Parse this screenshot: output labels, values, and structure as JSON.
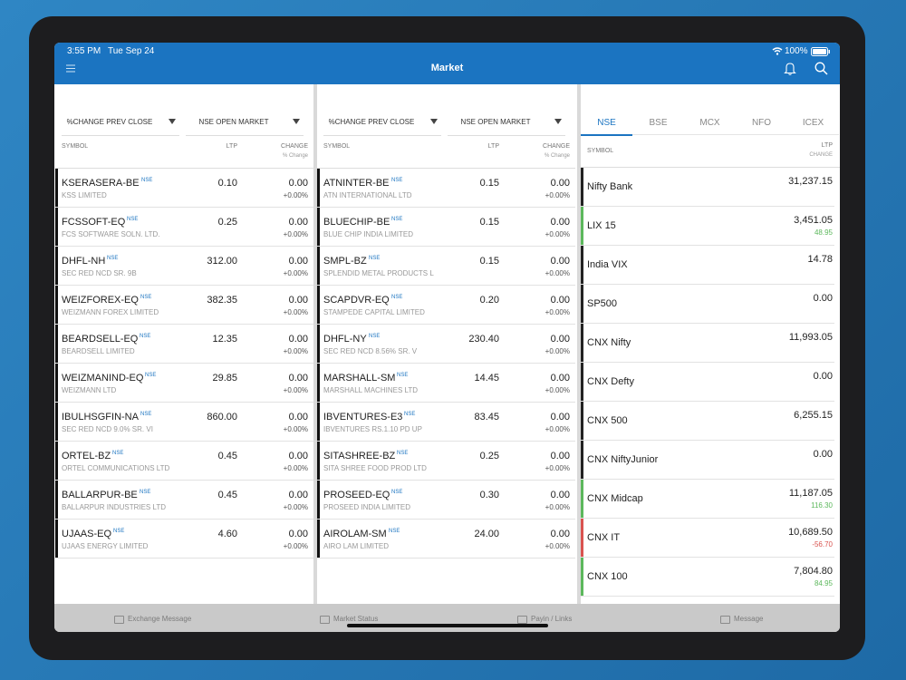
{
  "status_bar": {
    "time": "3:55 PM",
    "date": "Tue Sep 24",
    "battery": "100%"
  },
  "header": {
    "title": "Market"
  },
  "watchlists": [
    {
      "filters": [
        "%CHANGE PREV CLOSE",
        "NSE OPEN MARKET"
      ],
      "columns": {
        "symbol": "SYMBOL",
        "ltp": "LTP",
        "change": "CHANGE",
        "percent": "% Change"
      },
      "rows": [
        {
          "symbol": "KSERASERA-BE",
          "exchange": "NSE",
          "name": "KSS LIMITED",
          "ltp": "0.10",
          "change": "0.00",
          "percent": "+0.00%"
        },
        {
          "symbol": "FCSSOFT-EQ",
          "exchange": "NSE",
          "name": "FCS SOFTWARE SOLN. LTD.",
          "ltp": "0.25",
          "change": "0.00",
          "percent": "+0.00%"
        },
        {
          "symbol": "DHFL-NH",
          "exchange": "NSE",
          "name": "SEC RED NCD SR. 9B",
          "ltp": "312.00",
          "change": "0.00",
          "percent": "+0.00%"
        },
        {
          "symbol": "WEIZFOREX-EQ",
          "exchange": "NSE",
          "name": "WEIZMANN FOREX LIMITED",
          "ltp": "382.35",
          "change": "0.00",
          "percent": "+0.00%"
        },
        {
          "symbol": "BEARDSELL-EQ",
          "exchange": "NSE",
          "name": "BEARDSELL LIMITED",
          "ltp": "12.35",
          "change": "0.00",
          "percent": "+0.00%"
        },
        {
          "symbol": "WEIZMANIND-EQ",
          "exchange": "NSE",
          "name": "WEIZMANN LTD",
          "ltp": "29.85",
          "change": "0.00",
          "percent": "+0.00%"
        },
        {
          "symbol": "IBULHSGFIN-NA",
          "exchange": "NSE",
          "name": "SEC RED NCD 9.0% SR. VI",
          "ltp": "860.00",
          "change": "0.00",
          "percent": "+0.00%"
        },
        {
          "symbol": "ORTEL-BZ",
          "exchange": "NSE",
          "name": "ORTEL COMMUNICATIONS LTD",
          "ltp": "0.45",
          "change": "0.00",
          "percent": "+0.00%"
        },
        {
          "symbol": "BALLARPUR-BE",
          "exchange": "NSE",
          "name": "BALLARPUR INDUSTRIES LTD",
          "ltp": "0.45",
          "change": "0.00",
          "percent": "+0.00%"
        },
        {
          "symbol": "UJAAS-EQ",
          "exchange": "NSE",
          "name": "UJAAS ENERGY LIMITED",
          "ltp": "4.60",
          "change": "0.00",
          "percent": "+0.00%"
        }
      ]
    },
    {
      "filters": [
        "%CHANGE PREV CLOSE",
        "NSE OPEN MARKET"
      ],
      "columns": {
        "symbol": "SYMBOL",
        "ltp": "LTP",
        "change": "CHANGE",
        "percent": "% Change"
      },
      "rows": [
        {
          "symbol": "ATNINTER-BE",
          "exchange": "NSE",
          "name": "ATN INTERNATIONAL LTD",
          "ltp": "0.15",
          "change": "0.00",
          "percent": "+0.00%"
        },
        {
          "symbol": "BLUECHIP-BE",
          "exchange": "NSE",
          "name": "BLUE CHIP INDIA LIMITED",
          "ltp": "0.15",
          "change": "0.00",
          "percent": "+0.00%"
        },
        {
          "symbol": "SMPL-BZ",
          "exchange": "NSE",
          "name": "SPLENDID METAL PRODUCTS L",
          "ltp": "0.15",
          "change": "0.00",
          "percent": "+0.00%"
        },
        {
          "symbol": "SCAPDVR-EQ",
          "exchange": "NSE",
          "name": "STAMPEDE CAPITAL LIMITED",
          "ltp": "0.20",
          "change": "0.00",
          "percent": "+0.00%"
        },
        {
          "symbol": "DHFL-NY",
          "exchange": "NSE",
          "name": "SEC RED NCD 8.56% SR. V",
          "ltp": "230.40",
          "change": "0.00",
          "percent": "+0.00%"
        },
        {
          "symbol": "MARSHALL-SM",
          "exchange": "NSE",
          "name": "MARSHALL MACHINES LTD",
          "ltp": "14.45",
          "change": "0.00",
          "percent": "+0.00%"
        },
        {
          "symbol": "IBVENTURES-E3",
          "exchange": "NSE",
          "name": "IBVENTURES RS.1.10 PD UP",
          "ltp": "83.45",
          "change": "0.00",
          "percent": "+0.00%"
        },
        {
          "symbol": "SITASHREE-BZ",
          "exchange": "NSE",
          "name": "SITA SHREE FOOD PROD LTD",
          "ltp": "0.25",
          "change": "0.00",
          "percent": "+0.00%"
        },
        {
          "symbol": "PROSEED-EQ",
          "exchange": "NSE",
          "name": "PROSEED INDIA LIMITED",
          "ltp": "0.30",
          "change": "0.00",
          "percent": "+0.00%"
        },
        {
          "symbol": "AIROLAM-SM",
          "exchange": "NSE",
          "name": "AIRO LAM LIMITED",
          "ltp": "24.00",
          "change": "0.00",
          "percent": "+0.00%"
        }
      ]
    }
  ],
  "indices": {
    "tabs": [
      "NSE",
      "BSE",
      "MCX",
      "NFO",
      "ICEX"
    ],
    "columns": {
      "symbol": "SYMBOL",
      "ltp": "LTP",
      "change": "CHANGE"
    },
    "rows": [
      {
        "name": "Nifty Bank",
        "ltp": "31,237.15",
        "color": "#222222"
      },
      {
        "name": "LIX 15",
        "ltp": "3,451.05",
        "change": "48.95",
        "color": "#5cb85c"
      },
      {
        "name": "India VIX",
        "ltp": "14.78",
        "color": "#222222"
      },
      {
        "name": "SP500",
        "ltp": "0.00",
        "color": "#222222"
      },
      {
        "name": "CNX Nifty",
        "ltp": "11,993.05",
        "color": "#222222"
      },
      {
        "name": "CNX Defty",
        "ltp": "0.00",
        "color": "#222222"
      },
      {
        "name": "CNX 500",
        "ltp": "6,255.15",
        "color": "#222222"
      },
      {
        "name": "CNX NiftyJunior",
        "ltp": "0.00",
        "color": "#222222"
      },
      {
        "name": "CNX Midcap",
        "ltp": "11,187.05",
        "change": "116.30",
        "color": "#5cb85c"
      },
      {
        "name": "CNX IT",
        "ltp": "10,689.50",
        "change": "-56.70",
        "color": "#d9534f"
      },
      {
        "name": "CNX 100",
        "ltp": "7,804.80",
        "change": "84.95",
        "color": "#5cb85c"
      }
    ]
  },
  "footer": {
    "items": [
      "Exchange Message",
      "Market Status",
      "Payin / Links",
      "Message"
    ]
  }
}
